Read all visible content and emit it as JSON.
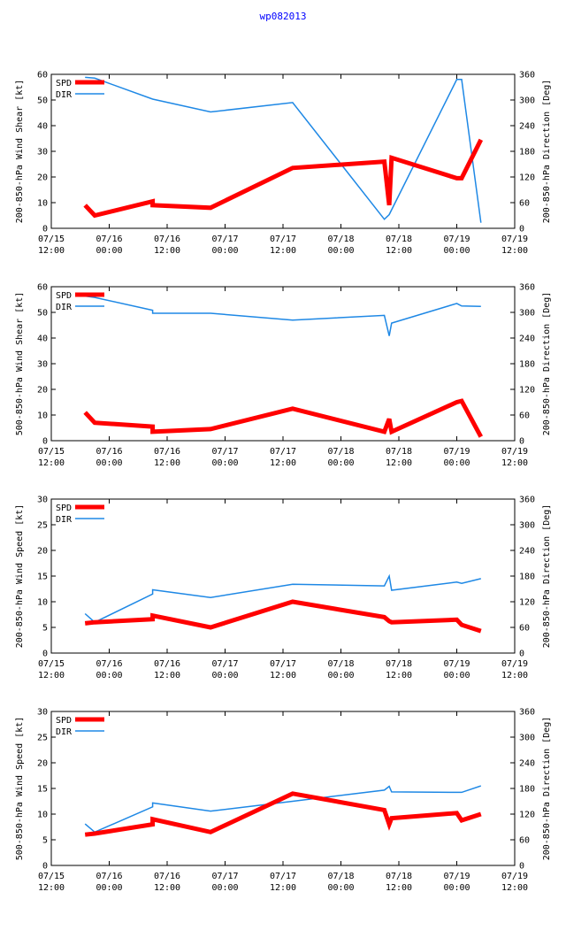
{
  "title": "wp082013",
  "colors": {
    "spd": "#ff0000",
    "dir": "#1e88e5",
    "title": "#0000ff"
  },
  "x_axis": {
    "min_hours": 0,
    "max_hours": 96,
    "tick_hours": [
      0,
      12,
      24,
      36,
      48,
      60,
      72,
      84,
      96
    ],
    "tick_labels": [
      [
        "07/15",
        "12:00"
      ],
      [
        "07/16",
        "00:00"
      ],
      [
        "07/16",
        "12:00"
      ],
      [
        "07/17",
        "00:00"
      ],
      [
        "07/17",
        "12:00"
      ],
      [
        "07/18",
        "00:00"
      ],
      [
        "07/18",
        "12:00"
      ],
      [
        "07/19",
        "00:00"
      ],
      [
        "07/19",
        "12:00"
      ]
    ]
  },
  "chart_data": [
    {
      "type": "line",
      "ylabel": "200-850-hPa Wind Shear [kt]",
      "y2label": "200-850-hPa Direction [Deg]",
      "ylim": [
        0,
        60
      ],
      "yticks": [
        0,
        10,
        20,
        30,
        40,
        50,
        60
      ],
      "y2lim": [
        0,
        360
      ],
      "y2ticks": [
        0,
        60,
        120,
        180,
        240,
        300,
        360
      ],
      "legend": {
        "spd": "SPD",
        "dir": "DIR"
      },
      "spd": {
        "x": [
          7,
          9,
          21,
          21,
          33,
          50,
          69,
          70,
          70.5,
          84,
          85,
          89
        ],
        "y": [
          9,
          5,
          10.5,
          9,
          8,
          23.5,
          26,
          9,
          27.5,
          19.5,
          19.5,
          34.5
        ]
      },
      "dir": {
        "x": [
          7,
          9,
          21,
          33,
          50,
          69,
          70,
          84,
          85,
          89
        ],
        "y": [
          353,
          351,
          302,
          272,
          294,
          21,
          32,
          348,
          348,
          13
        ]
      }
    },
    {
      "type": "line",
      "ylabel": "500-850-hPa Wind Shear [kt]",
      "y2label": "200-850-hPa Direction [Deg]",
      "ylim": [
        0,
        60
      ],
      "yticks": [
        0,
        10,
        20,
        30,
        40,
        50,
        60
      ],
      "y2lim": [
        0,
        360
      ],
      "y2ticks": [
        0,
        60,
        120,
        180,
        240,
        300,
        360
      ],
      "legend": {
        "spd": "SPD",
        "dir": "DIR"
      },
      "spd": {
        "x": [
          7,
          9,
          21,
          21,
          33,
          50,
          69,
          70,
          70.5,
          84,
          85,
          89
        ],
        "y": [
          11,
          7,
          5.5,
          3.5,
          4.5,
          12.5,
          3.5,
          8.5,
          3.5,
          15,
          15.5,
          1.5
        ]
      },
      "dir": {
        "x": [
          7,
          9,
          21,
          21,
          33,
          50,
          69,
          70,
          70.5,
          84,
          85,
          89
        ],
        "y": [
          338,
          335,
          305,
          298,
          298,
          282,
          293,
          245,
          275,
          321,
          315,
          314
        ]
      }
    },
    {
      "type": "line",
      "ylabel": "200-850-hPa Wind Speed [kt]",
      "y2label": "200-850-hPa Direction [Deg]",
      "ylim": [
        0,
        30
      ],
      "yticks": [
        0,
        5,
        10,
        15,
        20,
        25,
        30
      ],
      "y2lim": [
        0,
        360
      ],
      "y2ticks": [
        0,
        60,
        120,
        180,
        240,
        300,
        360
      ],
      "legend": {
        "spd": "SPD",
        "dir": "DIR"
      },
      "spd": {
        "x": [
          7,
          9,
          21,
          21,
          33,
          50,
          69,
          70,
          70.5,
          84,
          85,
          89
        ],
        "y": [
          5.8,
          6,
          6.6,
          7.3,
          5,
          10,
          7,
          6.2,
          6,
          6.5,
          5.5,
          4.3
        ]
      },
      "dir": {
        "x": [
          7,
          9,
          21,
          21,
          33,
          50,
          69,
          70,
          70.5,
          84,
          85,
          89
        ],
        "y": [
          92,
          72,
          138,
          148,
          130,
          161,
          157,
          180,
          147,
          166,
          163,
          174
        ]
      }
    },
    {
      "type": "line",
      "ylabel": "500-850-hPa Wind Speed [kt]",
      "y2label": "200-850-hPa Direction [Deg]",
      "ylim": [
        0,
        30
      ],
      "yticks": [
        0,
        5,
        10,
        15,
        20,
        25,
        30
      ],
      "y2lim": [
        0,
        360
      ],
      "y2ticks": [
        0,
        60,
        120,
        180,
        240,
        300,
        360
      ],
      "legend": {
        "spd": "SPD",
        "dir": "DIR"
      },
      "spd": {
        "x": [
          7,
          9,
          21,
          21,
          33,
          50,
          69,
          70,
          70.5,
          84,
          85,
          89
        ],
        "y": [
          6,
          6.2,
          8,
          9,
          6.5,
          14,
          10.8,
          8,
          9.2,
          10.2,
          8.8,
          10
        ]
      },
      "dir": {
        "x": [
          7,
          9,
          21,
          21,
          33,
          50,
          69,
          70,
          70.5,
          84,
          85,
          89
        ],
        "y": [
          97,
          78,
          137,
          146,
          127,
          150,
          176,
          185,
          172,
          171,
          171,
          186
        ]
      }
    }
  ]
}
